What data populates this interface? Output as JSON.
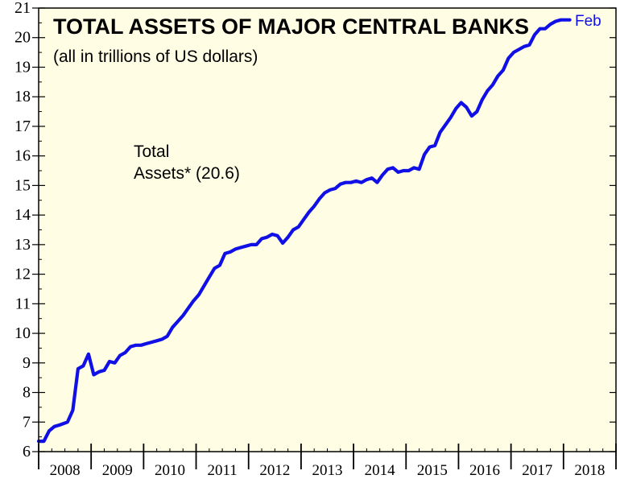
{
  "chart_data": {
    "type": "line",
    "title": "TOTAL ASSETS OF MAJOR CENTRAL BANKS",
    "subtitle": "(all in trillions of US dollars)",
    "annotation_lines": [
      "Total",
      "Assets* (20.6)"
    ],
    "end_label": "Feb",
    "xlabel": "",
    "ylabel": "",
    "ylim": [
      6,
      21
    ],
    "yticks": [
      "6",
      "7",
      "8",
      "9",
      "10",
      "11",
      "12",
      "13",
      "14",
      "15",
      "16",
      "17",
      "18",
      "19",
      "20",
      "21"
    ],
    "xlim": [
      2008,
      2019
    ],
    "xtick_labels": [
      "2008",
      "2009",
      "2010",
      "2011",
      "2012",
      "2013",
      "2014",
      "2015",
      "2016",
      "2017",
      "2018"
    ],
    "grid": false,
    "background_color": "#FFFDE3",
    "series": [
      {
        "color": "#1010E6",
        "x": [
          2008.0,
          2008.1,
          2008.2,
          2008.3,
          2008.4,
          2008.55,
          2008.65,
          2008.75,
          2008.85,
          2008.95,
          2009.05,
          2009.15,
          2009.25,
          2009.35,
          2009.45,
          2009.55,
          2009.65,
          2009.75,
          2009.85,
          2009.95,
          2010.05,
          2010.15,
          2010.25,
          2010.35,
          2010.45,
          2010.55,
          2010.65,
          2010.75,
          2010.85,
          2010.95,
          2011.05,
          2011.15,
          2011.25,
          2011.35,
          2011.45,
          2011.55,
          2011.65,
          2011.75,
          2011.85,
          2011.95,
          2012.05,
          2012.15,
          2012.25,
          2012.35,
          2012.45,
          2012.55,
          2012.65,
          2012.75,
          2012.85,
          2012.95,
          2013.05,
          2013.15,
          2013.25,
          2013.35,
          2013.45,
          2013.55,
          2013.65,
          2013.75,
          2013.85,
          2013.95,
          2014.05,
          2014.15,
          2014.25,
          2014.35,
          2014.45,
          2014.55,
          2014.65,
          2014.75,
          2014.85,
          2014.95,
          2015.05,
          2015.15,
          2015.25,
          2015.35,
          2015.45,
          2015.55,
          2015.65,
          2015.75,
          2015.85,
          2015.95,
          2016.05,
          2016.15,
          2016.25,
          2016.35,
          2016.45,
          2016.55,
          2016.65,
          2016.75,
          2016.85,
          2016.95,
          2017.05,
          2017.15,
          2017.25,
          2017.35,
          2017.45,
          2017.55,
          2017.65,
          2017.75,
          2017.85,
          2017.95,
          2018.05,
          2018.12
        ],
        "y": [
          6.35,
          6.35,
          6.7,
          6.85,
          6.9,
          7.0,
          7.4,
          8.8,
          8.9,
          9.3,
          8.6,
          8.7,
          8.75,
          9.05,
          9.0,
          9.25,
          9.35,
          9.55,
          9.6,
          9.6,
          9.65,
          9.7,
          9.75,
          9.8,
          9.9,
          10.2,
          10.4,
          10.6,
          10.85,
          11.1,
          11.3,
          11.6,
          11.9,
          12.2,
          12.3,
          12.7,
          12.75,
          12.85,
          12.9,
          12.95,
          13.0,
          13.0,
          13.2,
          13.25,
          13.35,
          13.3,
          13.05,
          13.25,
          13.5,
          13.6,
          13.85,
          14.1,
          14.3,
          14.55,
          14.75,
          14.85,
          14.9,
          15.05,
          15.1,
          15.1,
          15.15,
          15.1,
          15.2,
          15.25,
          15.1,
          15.35,
          15.55,
          15.6,
          15.45,
          15.5,
          15.5,
          15.6,
          15.55,
          16.05,
          16.3,
          16.35,
          16.8,
          17.05,
          17.3,
          17.6,
          17.8,
          17.65,
          17.35,
          17.5,
          17.9,
          18.2,
          18.4,
          18.7,
          18.9,
          19.3,
          19.5,
          19.6,
          19.7,
          19.75,
          20.1,
          20.3,
          20.3,
          20.45,
          20.55,
          20.6,
          20.6,
          20.6
        ]
      }
    ]
  }
}
